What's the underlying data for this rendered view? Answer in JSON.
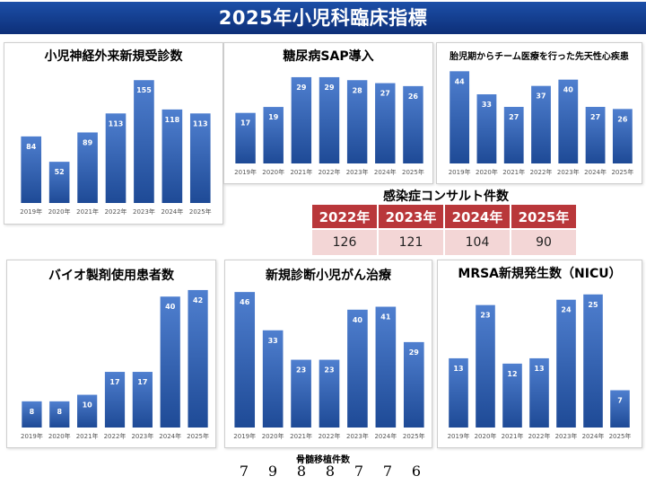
{
  "header": {
    "title": "2025年小児科臨床指標"
  },
  "colors": {
    "bar_top": "#4f7fcf",
    "bar_bottom": "#1e4a96",
    "table_header": "#b9373a",
    "table_cell": "#f3d6d6"
  },
  "chart_data": [
    {
      "id": "neuro",
      "type": "bar",
      "title": "小児神経外来新規受診数",
      "categories": [
        "2019年",
        "2020年",
        "2021年",
        "2022年",
        "2023年",
        "2024年",
        "2025年"
      ],
      "values": [
        84,
        52,
        89,
        113,
        155,
        118,
        113
      ],
      "ylim": [
        0,
        170
      ]
    },
    {
      "id": "sap",
      "type": "bar",
      "title": "糖尿病SAP導入",
      "categories": [
        "2019年",
        "2020年",
        "2021年",
        "2022年",
        "2023年",
        "2024年",
        "2025年"
      ],
      "values": [
        17,
        19,
        29,
        29,
        28,
        27,
        26
      ],
      "ylim": [
        0,
        32
      ]
    },
    {
      "id": "fetal",
      "type": "bar",
      "title": "胎児期からチーム医療を行った先天性心疾患",
      "categories": [
        "2019年",
        "2020年",
        "2021年",
        "2022年",
        "2023年",
        "2024年",
        "2025年"
      ],
      "values": [
        44,
        33,
        27,
        37,
        40,
        27,
        26
      ],
      "ylim": [
        0,
        48
      ]
    },
    {
      "id": "bio",
      "type": "bar",
      "title": "バイオ製剤使用患者数",
      "categories": [
        "2019年",
        "2020年",
        "2021年",
        "2022年",
        "2023年",
        "2024年",
        "2025年"
      ],
      "values": [
        8,
        8,
        10,
        17,
        17,
        40,
        42
      ],
      "ylim": [
        0,
        45
      ]
    },
    {
      "id": "cancer",
      "type": "bar",
      "title": "新規診断小児がん治療",
      "categories": [
        "2019年",
        "2020年",
        "2021年",
        "2022年",
        "2023年",
        "2024年",
        "2025年"
      ],
      "values": [
        46,
        33,
        23,
        23,
        40,
        41,
        29
      ],
      "ylim": [
        0,
        50
      ]
    },
    {
      "id": "mrsa",
      "type": "bar",
      "title": "MRSA新規発生数（NICU）",
      "categories": [
        "2019年",
        "2020年",
        "2021年",
        "2022年",
        "2023年",
        "2024年",
        "2025年"
      ],
      "values": [
        13,
        23,
        12,
        13,
        24,
        25,
        7
      ],
      "ylim": [
        0,
        28
      ]
    },
    {
      "id": "infection",
      "type": "table",
      "title": "感染症コンサルト件数",
      "columns": [
        "2022年",
        "2023年",
        "2024年",
        "2025年"
      ],
      "values": [
        126,
        121,
        104,
        90
      ]
    }
  ],
  "bone_marrow": {
    "label": "骨髄移植件数",
    "values": [
      7,
      9,
      8,
      8,
      7,
      7,
      6
    ]
  }
}
